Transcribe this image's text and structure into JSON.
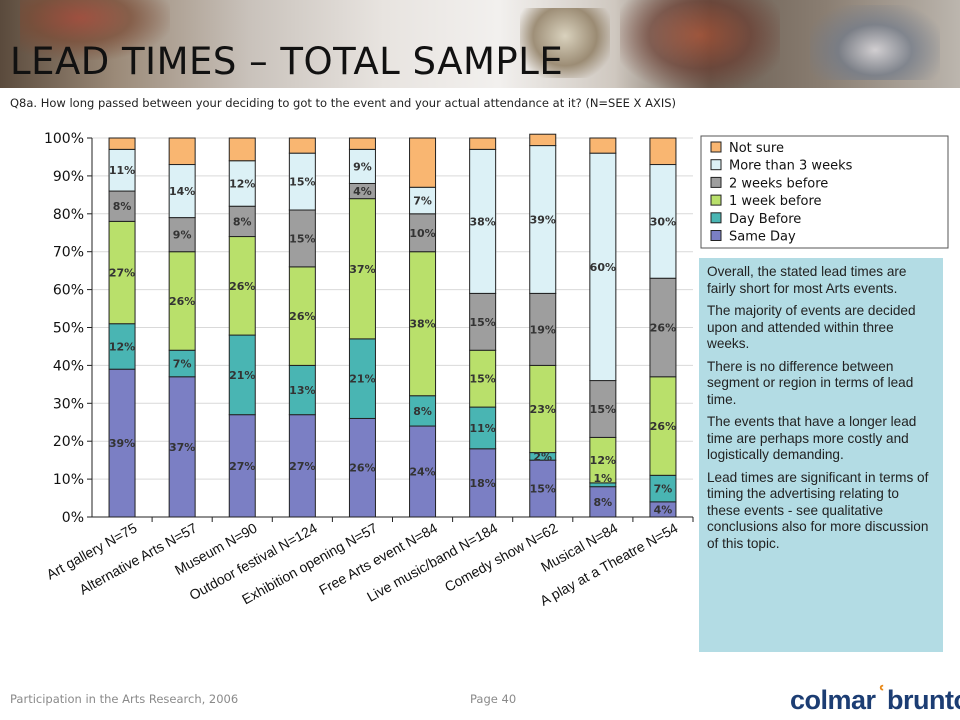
{
  "slide": {
    "title": "LEAD TIMES – TOTAL SAMPLE",
    "question": "Q8a. How long passed between your deciding to got to the event and your actual attendance at it? (N=SEE X AXIS)",
    "footer_text": "Participation in the Arts Research, 2006",
    "page_label": "Page 40",
    "logo_part1": "colmar",
    "logo_mark": "ʿ",
    "logo_part2": "brunton"
  },
  "notes": [
    "Overall, the stated lead times are fairly short for most Arts events.",
    "The majority of events are decided upon and attended within three weeks.",
    "There is no difference between segment or region in terms of lead time.",
    "The events that have a longer lead time are perhaps more costly and logistically demanding.",
    "Lead times are significant in terms of timing the advertising relating to these events - see qualitative conclusions also for more discussion of this topic."
  ],
  "colors": {
    "same_day": "#7b7fc4",
    "day_before": "#49b5b3",
    "one_week": "#b9e06b",
    "two_weeks": "#9e9e9e",
    "more_than_3_weeks": "#dcf1f6",
    "not_sure": "#f9b671"
  },
  "chart_data": {
    "type": "bar",
    "stacked": true,
    "categories": [
      "Art gallery N=75",
      "Alternative Arts N=57",
      "Museum N=90",
      "Outdoor festival N=124",
      "Exhibition opening N=57",
      "Free Arts event N=84",
      "Live music/band N=184",
      "Comedy show N=62",
      "Musical N=84",
      "A play at a Theatre N=54"
    ],
    "ylim": [
      0,
      100
    ],
    "yticks": [
      "0%",
      "10%",
      "20%",
      "30%",
      "40%",
      "50%",
      "60%",
      "70%",
      "80%",
      "90%",
      "100%"
    ],
    "legend_position": "top-right",
    "series": [
      {
        "name": "Same Day",
        "color_key": "same_day",
        "values": [
          39,
          37,
          27,
          27,
          26,
          24,
          18,
          15,
          8,
          4
        ],
        "labels": [
          "39%",
          "37%",
          "27%",
          "27%",
          "26%",
          "24%",
          "18%",
          "15%",
          "8%",
          "4%"
        ]
      },
      {
        "name": "Day Before",
        "color_key": "day_before",
        "values": [
          12,
          7,
          21,
          13,
          21,
          8,
          11,
          2,
          1,
          7
        ],
        "labels": [
          "12%",
          "7%",
          "21%",
          "13%",
          "21%",
          "8%",
          "11%",
          "2%",
          "",
          "7%"
        ]
      },
      {
        "name": "1 week before",
        "color_key": "one_week",
        "values": [
          27,
          26,
          26,
          26,
          37,
          38,
          15,
          23,
          12,
          26
        ],
        "labels": [
          "27%",
          "26%",
          "26%",
          "26%",
          "37%",
          "38%",
          "15%",
          "23%",
          "12%",
          "26%"
        ]
      },
      {
        "name": "2 weeks before",
        "color_key": "two_weeks",
        "values": [
          8,
          9,
          8,
          15,
          4,
          10,
          15,
          19,
          15,
          26
        ],
        "labels": [
          "8%",
          "9%",
          "8%",
          "15%",
          "4%",
          "10%",
          "15%",
          "19%",
          "15%",
          "26%"
        ]
      },
      {
        "name": "More than 3 weeks",
        "color_key": "more_than_3_weeks",
        "values": [
          11,
          14,
          12,
          15,
          9,
          7,
          38,
          39,
          60,
          30
        ],
        "labels": [
          "11%",
          "14%",
          "12%",
          "15%",
          "9%",
          "7%",
          "38%",
          "39%",
          "60%",
          "30%"
        ]
      },
      {
        "name": "Not sure",
        "color_key": "not_sure",
        "values": [
          3,
          7,
          6,
          4,
          3,
          13,
          3,
          3,
          4,
          7
        ],
        "labels": [
          "",
          "",
          "",
          "",
          "",
          "",
          "",
          "",
          "",
          ""
        ]
      }
    ],
    "extra_labels": [
      {
        "category_index": 8,
        "text": "1%"
      }
    ]
  }
}
